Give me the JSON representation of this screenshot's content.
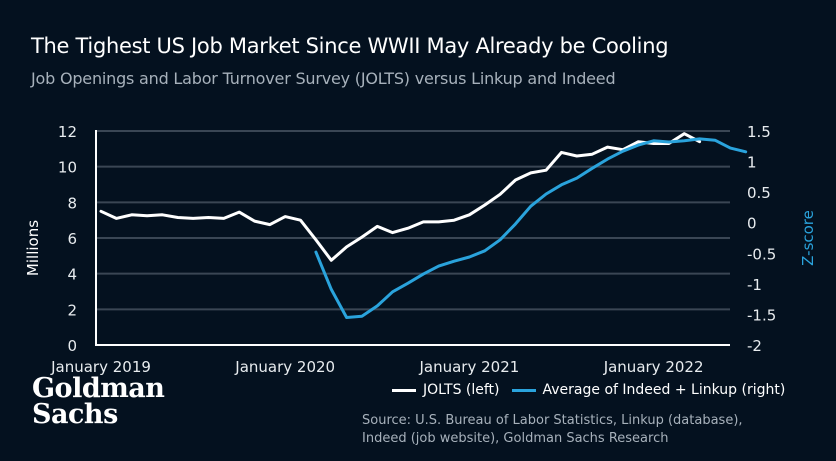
{
  "title": "The Tighest US Job Market Since WWII May Already be Cooling",
  "subtitle": "Job Openings and Labor Turnover Survey (JOLTS) versus Linkup and Indeed",
  "logo": {
    "line1": "Goldman",
    "line2": "Sachs"
  },
  "source": {
    "line1": "Source: U.S. Bureau of Labor Statistics, Linkup (database),",
    "line2": "Indeed (job website), Goldman Sachs Research"
  },
  "colors": {
    "background": "#04111f",
    "jolts": "#ffffff",
    "indeed_linkup": "#2aa3dc",
    "grid": "#3a4654"
  },
  "chart_data": {
    "type": "line",
    "title": "The Tighest US Job Market Since WWII May Already be Cooling",
    "subtitle": "Job Openings and Labor Turnover Survey (JOLTS) versus Linkup and Indeed",
    "x_start": "January 2019",
    "x_frequency": "monthly",
    "x_tick_labels": [
      "January 2019",
      "January 2020",
      "January 2021",
      "January 2022"
    ],
    "x_tick_index": [
      0,
      12,
      24,
      36
    ],
    "left_axis": {
      "label": "Millions",
      "ylim": [
        0,
        12
      ],
      "ticks": [
        0,
        2,
        4,
        6,
        8,
        10,
        12
      ],
      "tick_labels": [
        "0",
        "2",
        "4",
        "6",
        "8",
        "10",
        "12"
      ]
    },
    "right_axis": {
      "label": "Z-score",
      "ylim": [
        -2,
        1.5
      ],
      "ticks": [
        -2,
        -1.5,
        -1,
        -0.5,
        0,
        0.5,
        1,
        1.5
      ],
      "tick_labels": [
        "-2",
        "-1.5",
        "-1",
        "-0.5",
        "0",
        "0.5",
        "1",
        "1.5"
      ]
    },
    "grid": true,
    "legend_position": "bottom-right",
    "series": [
      {
        "name": "JOLTS (left)",
        "axis": "left",
        "start_index": 0,
        "values": [
          7.5,
          7.1,
          7.3,
          7.25,
          7.3,
          7.15,
          7.1,
          7.15,
          7.1,
          7.45,
          6.95,
          6.75,
          7.2,
          7.0,
          5.9,
          4.75,
          5.5,
          6.05,
          6.65,
          6.3,
          6.55,
          6.9,
          6.9,
          7.0,
          7.3,
          7.85,
          8.45,
          9.25,
          9.65,
          9.8,
          10.8,
          10.6,
          10.7,
          11.1,
          10.95,
          11.4,
          11.3,
          11.3,
          11.85,
          11.4
        ]
      },
      {
        "name": "Average of Indeed + Linkup (right)",
        "axis": "right",
        "start_index": 14,
        "values": [
          -0.48,
          -1.09,
          -1.55,
          -1.53,
          -1.36,
          -1.13,
          -0.99,
          -0.84,
          -0.71,
          -0.63,
          -0.56,
          -0.46,
          -0.28,
          -0.02,
          0.27,
          0.47,
          0.62,
          0.73,
          0.89,
          1.04,
          1.17,
          1.27,
          1.34,
          1.32,
          1.34,
          1.37,
          1.35,
          1.22,
          1.16
        ]
      }
    ]
  }
}
